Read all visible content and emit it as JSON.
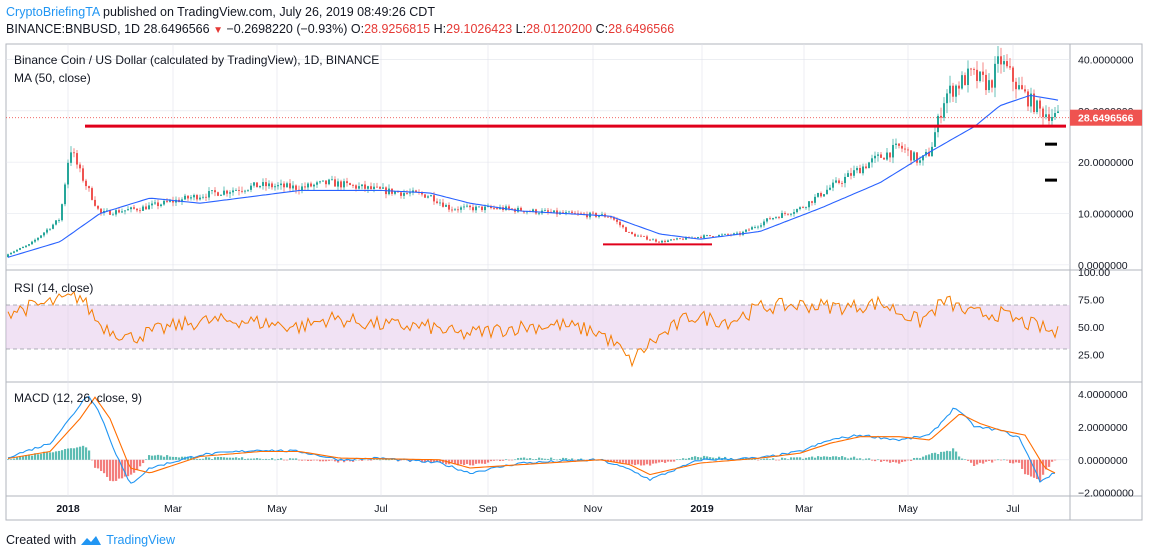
{
  "header": {
    "author": "CryptoBriefingTA",
    "published": "published on TradingView.com, July 26, 2019 08:49:26 CDT",
    "symbol": "BINANCE:BNBUSD, 1D",
    "last": "28.6496566",
    "change": "−0.2698220 (−0.93%)",
    "o_label": "O:",
    "o": "28.9256815",
    "h_label": "H:",
    "h": "29.1026423",
    "l_label": "L:",
    "l": "28.0120200",
    "c_label": "C:",
    "c": "28.6496566"
  },
  "footer": {
    "created_with": "Created with",
    "brand": "TradingView"
  },
  "colors": {
    "up": "#26a69a",
    "down": "#ef5350",
    "ma": "#2962ff",
    "rsi": "#f57c00",
    "rsi_band": "#e1bee7",
    "macd": "#2196f3",
    "signal": "#ff6d00",
    "support": "#e0001b",
    "grid": "#e0e3eb"
  },
  "chart_data": [
    {
      "type": "candlestick",
      "title": "Binance Coin / US Dollar (calculated by TradingView), 1D, BINANCE",
      "indicator": "MA (50, close)",
      "x_labels": [
        "2018",
        "Mar",
        "May",
        "Jul",
        "Sep",
        "Nov",
        "2019",
        "Mar",
        "May",
        "Jul"
      ],
      "y_ticks": [
        "40.0000000",
        "30.0000000",
        "20.0000000",
        "10.0000000",
        "0.0000000"
      ],
      "ylim": [
        -1,
        43
      ],
      "last_price_label": "28.6496566",
      "price_anchors": [
        [
          0,
          1.5
        ],
        [
          30,
          4
        ],
        [
          60,
          9
        ],
        [
          70,
          23
        ],
        [
          80,
          18
        ],
        [
          100,
          10
        ],
        [
          140,
          11
        ],
        [
          200,
          13.5
        ],
        [
          260,
          15.5
        ],
        [
          300,
          15
        ],
        [
          330,
          16
        ],
        [
          380,
          14.5
        ],
        [
          430,
          13.5
        ],
        [
          450,
          11
        ],
        [
          500,
          11
        ],
        [
          560,
          10
        ],
        [
          610,
          9.5
        ],
        [
          630,
          6
        ],
        [
          660,
          4.5
        ],
        [
          700,
          5.5
        ],
        [
          740,
          6
        ],
        [
          770,
          9
        ],
        [
          800,
          11
        ],
        [
          830,
          15
        ],
        [
          870,
          20
        ],
        [
          900,
          23
        ],
        [
          920,
          20
        ],
        [
          930,
          22
        ],
        [
          945,
          33
        ],
        [
          970,
          37
        ],
        [
          990,
          35
        ],
        [
          1000,
          40
        ],
        [
          1020,
          34
        ],
        [
          1040,
          30
        ],
        [
          1060,
          28.6
        ]
      ],
      "ma_anchors": [
        [
          0,
          1
        ],
        [
          60,
          4.5
        ],
        [
          100,
          10
        ],
        [
          150,
          13
        ],
        [
          200,
          12
        ],
        [
          300,
          14.5
        ],
        [
          380,
          14.5
        ],
        [
          430,
          14
        ],
        [
          470,
          12
        ],
        [
          520,
          10.5
        ],
        [
          610,
          9.5
        ],
        [
          660,
          6
        ],
        [
          700,
          5
        ],
        [
          760,
          6.5
        ],
        [
          820,
          11
        ],
        [
          880,
          16
        ],
        [
          930,
          22
        ],
        [
          975,
          27
        ],
        [
          1000,
          31
        ],
        [
          1030,
          33
        ],
        [
          1060,
          32
        ]
      ],
      "support_lines": [
        {
          "x": [
            85,
            1066
          ],
          "y": 27
        },
        {
          "x": [
            603,
            712
          ],
          "y": 4
        }
      ],
      "target_marks": [
        23.5,
        16.5
      ]
    },
    {
      "type": "line",
      "title": "RSI (14, close)",
      "y_ticks": [
        "100.00",
        "75.00",
        "50.00",
        "25.00"
      ],
      "ylim": [
        0,
        100
      ],
      "band": [
        30,
        70
      ],
      "anchors": [
        [
          0,
          62
        ],
        [
          40,
          70
        ],
        [
          80,
          78
        ],
        [
          100,
          52
        ],
        [
          130,
          40
        ],
        [
          170,
          50
        ],
        [
          200,
          55
        ],
        [
          240,
          56
        ],
        [
          300,
          50
        ],
        [
          330,
          58
        ],
        [
          380,
          52
        ],
        [
          430,
          50
        ],
        [
          460,
          43
        ],
        [
          520,
          50
        ],
        [
          560,
          52
        ],
        [
          600,
          45
        ],
        [
          620,
          30
        ],
        [
          630,
          18
        ],
        [
          650,
          35
        ],
        [
          690,
          60
        ],
        [
          730,
          55
        ],
        [
          760,
          68
        ],
        [
          800,
          70
        ],
        [
          850,
          68
        ],
        [
          880,
          72
        ],
        [
          920,
          55
        ],
        [
          945,
          74
        ],
        [
          970,
          62
        ],
        [
          1000,
          62
        ],
        [
          1020,
          55
        ],
        [
          1040,
          50
        ],
        [
          1055,
          44
        ]
      ]
    },
    {
      "type": "line",
      "title": "MACD (12, 26, close, 9)",
      "y_ticks": [
        "4.0000000",
        "2.0000000",
        "0.0000000",
        "−2.0000000"
      ],
      "ylim": [
        -2.2,
        4.6
      ],
      "anchors": [
        [
          0,
          0
        ],
        [
          50,
          1
        ],
        [
          70,
          2.5
        ],
        [
          88,
          4
        ],
        [
          100,
          2.8
        ],
        [
          115,
          0.5
        ],
        [
          130,
          -1.5
        ],
        [
          150,
          -0.5
        ],
        [
          200,
          0.3
        ],
        [
          260,
          0.6
        ],
        [
          300,
          0.5
        ],
        [
          340,
          0
        ],
        [
          380,
          0.1
        ],
        [
          440,
          -0.2
        ],
        [
          470,
          -0.8
        ],
        [
          520,
          -0.2
        ],
        [
          600,
          0
        ],
        [
          630,
          -0.6
        ],
        [
          650,
          -1.2
        ],
        [
          700,
          0
        ],
        [
          760,
          0.1
        ],
        [
          800,
          0.5
        ],
        [
          830,
          1.2
        ],
        [
          860,
          1.5
        ],
        [
          900,
          1.2
        ],
        [
          930,
          1.5
        ],
        [
          955,
          3.2
        ],
        [
          975,
          2
        ],
        [
          1000,
          1.8
        ],
        [
          1020,
          1.3
        ],
        [
          1040,
          -1.3
        ],
        [
          1055,
          -0.8
        ]
      ],
      "signal_anchors": [
        [
          0,
          0
        ],
        [
          50,
          0.5
        ],
        [
          80,
          2.5
        ],
        [
          95,
          3.8
        ],
        [
          110,
          2.5
        ],
        [
          130,
          -0.5
        ],
        [
          150,
          -0.8
        ],
        [
          200,
          0.2
        ],
        [
          260,
          0.5
        ],
        [
          300,
          0.5
        ],
        [
          340,
          0.1
        ],
        [
          440,
          0
        ],
        [
          470,
          -0.5
        ],
        [
          520,
          -0.3
        ],
        [
          600,
          0
        ],
        [
          630,
          -0.3
        ],
        [
          650,
          -0.9
        ],
        [
          700,
          -0.2
        ],
        [
          760,
          0.1
        ],
        [
          800,
          0.4
        ],
        [
          830,
          1
        ],
        [
          860,
          1.4
        ],
        [
          900,
          1.4
        ],
        [
          930,
          1.2
        ],
        [
          960,
          2.8
        ],
        [
          980,
          2.2
        ],
        [
          1000,
          1.8
        ],
        [
          1025,
          1.5
        ],
        [
          1045,
          -0.5
        ],
        [
          1055,
          -0.8
        ]
      ]
    }
  ]
}
